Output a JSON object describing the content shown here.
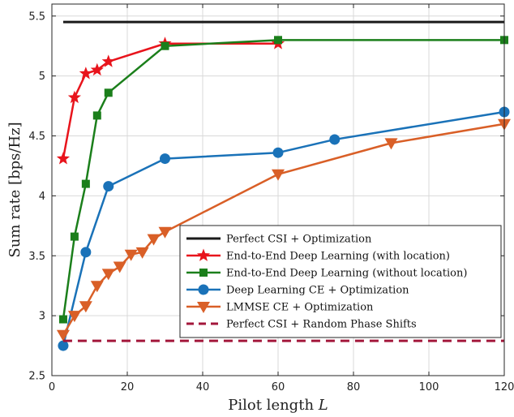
{
  "chart_data": {
    "type": "line",
    "title": "",
    "xlabel": "Pilot length",
    "xlabel_var": "L",
    "ylabel": "Sum rate [bps/Hz]",
    "xlim": [
      0,
      120
    ],
    "ylim": [
      2.5,
      5.6
    ],
    "xticks": [
      "0",
      "20",
      "40",
      "60",
      "80",
      "100",
      "120"
    ],
    "yticks": [
      "2.5",
      "3",
      "3.5",
      "4",
      "4.5",
      "5",
      "5.5"
    ],
    "grid": true,
    "legend_position": "bottom-right",
    "series": [
      {
        "name": "Perfect CSI + Optimization",
        "color": "#1a1a1a",
        "marker": "none",
        "dash": "solid",
        "x": [
          3,
          120
        ],
        "y": [
          5.45,
          5.45
        ]
      },
      {
        "name": "End-to-End Deep Learning (with location)",
        "color": "#e8141c",
        "marker": "star",
        "dash": "solid",
        "x": [
          3,
          6,
          9,
          12,
          15,
          30,
          60
        ],
        "y": [
          4.31,
          4.82,
          5.02,
          5.05,
          5.12,
          5.27,
          5.27
        ]
      },
      {
        "name": "End-to-End Deep Learning (without location)",
        "color": "#1b7f1b",
        "marker": "square",
        "dash": "solid",
        "x": [
          3,
          6,
          9,
          12,
          15,
          30,
          60,
          120
        ],
        "y": [
          2.97,
          3.66,
          4.1,
          4.67,
          4.86,
          5.25,
          5.3,
          5.3
        ]
      },
      {
        "name": "Deep Learning CE + Optimization",
        "color": "#1a72b8",
        "marker": "circle",
        "dash": "solid",
        "x": [
          3,
          9,
          15,
          30,
          60,
          75,
          120
        ],
        "y": [
          2.75,
          3.53,
          4.08,
          4.31,
          4.36,
          4.47,
          4.7
        ]
      },
      {
        "name": "LMMSE CE + Optimization",
        "color": "#d95f27",
        "marker": "triangle-down",
        "dash": "solid",
        "x": [
          3,
          6,
          9,
          12,
          15,
          18,
          21,
          24,
          27,
          30,
          60,
          90,
          120
        ],
        "y": [
          2.84,
          3.0,
          3.08,
          3.25,
          3.35,
          3.41,
          3.51,
          3.53,
          3.64,
          3.7,
          4.18,
          4.44,
          4.6
        ]
      },
      {
        "name": "Perfect CSI + Random Phase Shifts",
        "color": "#a3173b",
        "marker": "none",
        "dash": "dashed",
        "x": [
          3,
          120
        ],
        "y": [
          2.79,
          2.79
        ]
      }
    ]
  }
}
